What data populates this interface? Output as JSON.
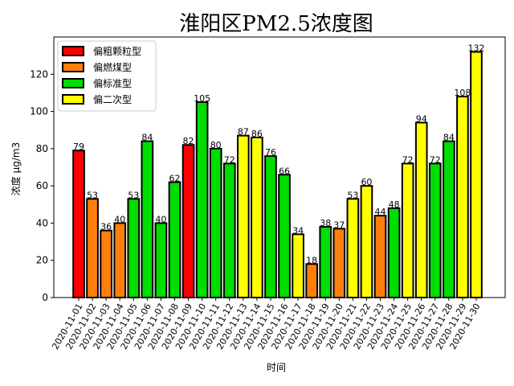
{
  "chart_data": {
    "type": "bar",
    "title": "淮阳区PM2.5浓度图",
    "xlabel": "时间",
    "ylabel": "浓度 μg/m3",
    "ylim": [
      0,
      140
    ],
    "yticks": [
      0,
      20,
      40,
      60,
      80,
      100,
      120
    ],
    "grid": false,
    "legend_position": "top-left",
    "legend": [
      {
        "name": "偏粗颗粒型",
        "color": "#ff0000"
      },
      {
        "name": "偏燃煤型",
        "color": "#ff7f0e"
      },
      {
        "name": "偏标准型",
        "color": "#00dd00"
      },
      {
        "name": "偏二次型",
        "color": "#ffff00"
      }
    ],
    "categories": [
      "2020-11-01",
      "2020-11-02",
      "2020-11-03",
      "2020-11-04",
      "2020-11-05",
      "2020-11-06",
      "2020-11-07",
      "2020-11-08",
      "2020-11-09",
      "2020-11-10",
      "2020-11-11",
      "2020-11-12",
      "2020-11-13",
      "2020-11-14",
      "2020-11-15",
      "2020-11-16",
      "2020-11-17",
      "2020-11-18",
      "2020-11-19",
      "2020-11-20",
      "2020-11-21",
      "2020-11-22",
      "2020-11-23",
      "2020-11-24",
      "2020-11-25",
      "2020-11-26",
      "2020-11-27",
      "2020-11-28",
      "2020-11-29",
      "2020-11-30"
    ],
    "values": [
      79,
      53,
      36,
      40,
      53,
      84,
      40,
      62,
      82,
      105,
      80,
      72,
      87,
      86,
      76,
      66,
      34,
      18,
      38,
      37,
      53,
      60,
      44,
      48,
      72,
      94,
      72,
      84,
      108,
      132
    ],
    "bar_types": [
      0,
      1,
      1,
      1,
      2,
      2,
      2,
      2,
      0,
      2,
      2,
      2,
      3,
      3,
      2,
      2,
      3,
      1,
      2,
      1,
      3,
      3,
      1,
      2,
      3,
      3,
      2,
      2,
      3,
      3
    ]
  }
}
